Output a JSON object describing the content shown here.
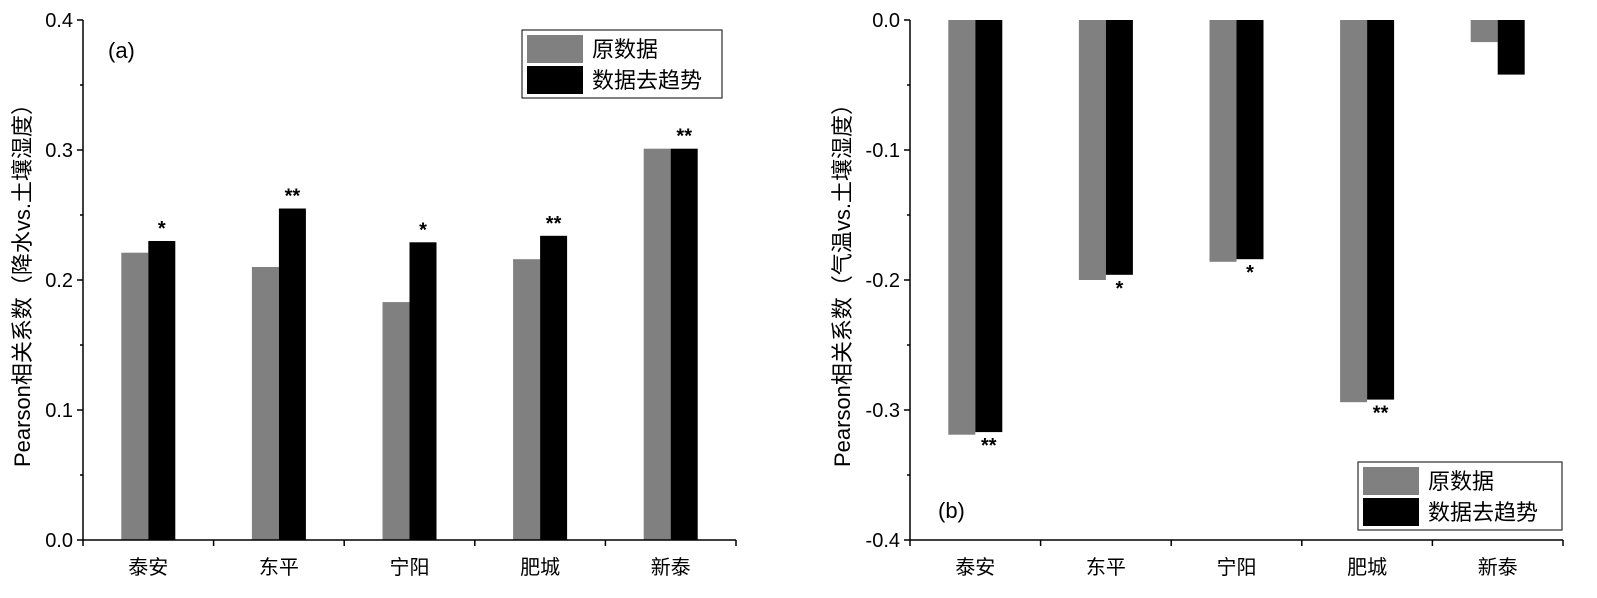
{
  "chart_data": [
    {
      "type": "bar",
      "panel_label": "(a)",
      "ylabel": "Pearson相关系数（降水vs.土壤湿度）",
      "categories": [
        "泰安",
        "东平",
        "宁阳",
        "肥城",
        "新泰"
      ],
      "ylim": [
        0.0,
        0.4
      ],
      "yticks": [
        "0.0",
        "0.1",
        "0.2",
        "0.3",
        "0.4"
      ],
      "legend_position": "top-right",
      "series": [
        {
          "name": "原数据",
          "color": "#808080",
          "values": [
            0.221,
            0.21,
            0.183,
            0.216,
            0.301
          ]
        },
        {
          "name": "数据去趋势",
          "color": "#000000",
          "values": [
            0.23,
            0.255,
            0.229,
            0.234,
            0.301
          ]
        }
      ],
      "significance": [
        "*",
        "**",
        "*",
        "**",
        "**"
      ]
    },
    {
      "type": "bar",
      "panel_label": "(b)",
      "ylabel": "Pearson相关系数（气温vs.土壤湿度）",
      "categories": [
        "泰安",
        "东平",
        "宁阳",
        "肥城",
        "新泰"
      ],
      "ylim": [
        -0.4,
        0.0
      ],
      "yticks": [
        "-0.4",
        "-0.3",
        "-0.2",
        "-0.1",
        "0.0"
      ],
      "legend_position": "bottom-right",
      "series": [
        {
          "name": "原数据",
          "color": "#808080",
          "values": [
            -0.319,
            -0.2,
            -0.186,
            -0.294,
            -0.017
          ]
        },
        {
          "name": "数据去趋势",
          "color": "#000000",
          "values": [
            -0.317,
            -0.196,
            -0.184,
            -0.292,
            -0.042
          ]
        }
      ],
      "significance": [
        "**",
        "*",
        "*",
        "**",
        ""
      ]
    }
  ]
}
